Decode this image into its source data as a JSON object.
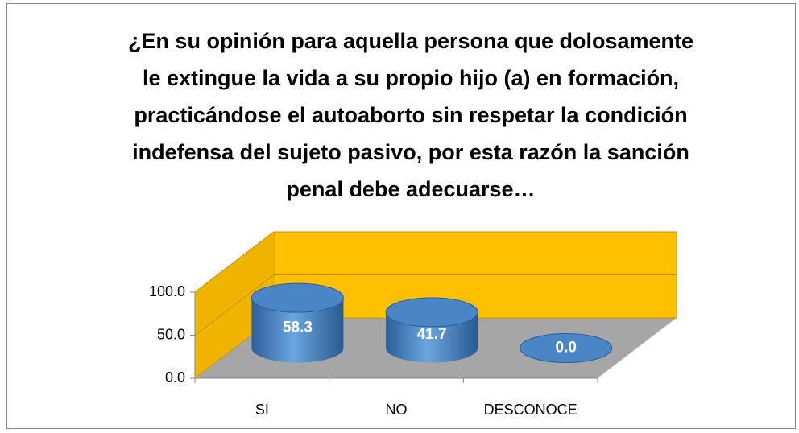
{
  "chart_data": {
    "type": "bar3d",
    "title": "¿En su opinión para aquella persona que dolosamente le extingue la vida a su propio hijo (a) en formación, practicándose el autoaborto sin respetar la condición indefensa del sujeto pasivo, por esta razón la sanción penal debe adecuarse…",
    "categories": [
      "SI",
      "NO",
      "DESCONOCE"
    ],
    "values": [
      58.3,
      41.7,
      0.0
    ],
    "value_labels": [
      "58.3",
      "41.7",
      "0.0"
    ],
    "color": "#4f8fd0",
    "ylim": [
      0,
      100
    ],
    "yticks": [
      {
        "value": 0,
        "label": "0.0"
      },
      {
        "value": 50,
        "label": "50.0"
      },
      {
        "value": 100,
        "label": "100.0"
      }
    ],
    "grid": true
  }
}
